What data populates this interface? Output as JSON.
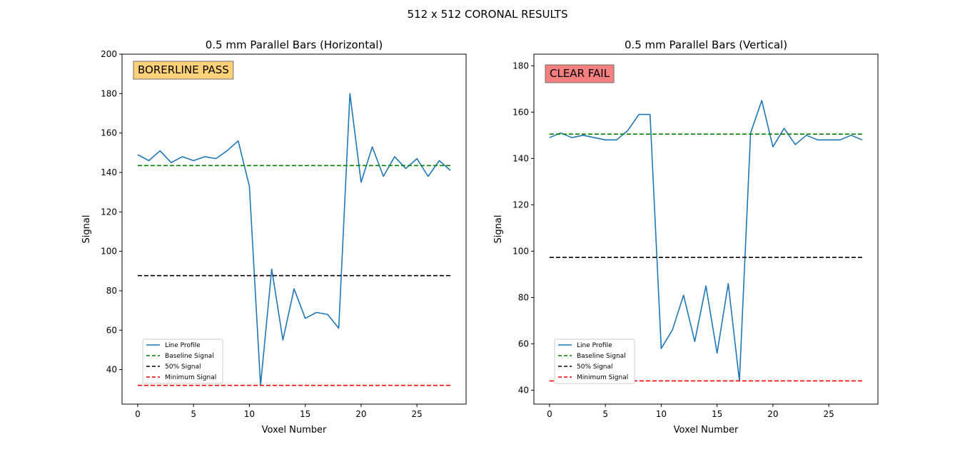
{
  "figure": {
    "title": "512 x 512 CORONAL RESULTS"
  },
  "chart_data": [
    {
      "type": "line",
      "title": "0.5 mm Parallel Bars (Horizontal)",
      "xlabel": "Voxel Number",
      "ylabel": "Signal",
      "xlim": [
        -1.4,
        29.4
      ],
      "ylim": [
        22.5,
        200
      ],
      "xticks": [
        0,
        5,
        10,
        15,
        20,
        25
      ],
      "yticks": [
        40,
        60,
        80,
        100,
        120,
        140,
        160,
        180,
        200
      ],
      "grid": false,
      "legend_position": "lower-left",
      "badge": {
        "text": "BORERLINE PASS",
        "color": "#ffd27a"
      },
      "series": [
        {
          "name": "Line Profile",
          "color": "#1f77b4",
          "style": "solid",
          "x": [
            0,
            1,
            2,
            3,
            4,
            5,
            6,
            7,
            8,
            9,
            10,
            11,
            12,
            13,
            14,
            15,
            16,
            17,
            18,
            19,
            20,
            21,
            22,
            23,
            24,
            25,
            26,
            27,
            28
          ],
          "y": [
            149,
            146,
            151,
            145,
            148,
            146,
            148,
            147,
            151,
            156,
            133,
            32,
            91,
            55,
            81,
            66,
            69,
            68,
            61,
            180,
            135,
            153,
            138,
            148,
            142,
            147,
            138,
            146,
            141
          ]
        },
        {
          "name": "Baseline Signal",
          "color": "#008000",
          "style": "dashed",
          "x": [
            0,
            28
          ],
          "y": [
            143.5,
            143.5
          ]
        },
        {
          "name": "50% Signal",
          "color": "#000000",
          "style": "dashed",
          "x": [
            0,
            28
          ],
          "y": [
            87.7,
            87.7
          ]
        },
        {
          "name": "Minimum Signal",
          "color": "#ff0000",
          "style": "dashed",
          "x": [
            0,
            28
          ],
          "y": [
            32,
            32
          ]
        }
      ]
    },
    {
      "type": "line",
      "title": "0.5 mm Parallel Bars (Vertical)",
      "xlabel": "Voxel Number",
      "ylabel": "Signal",
      "xlim": [
        -1.4,
        29.4
      ],
      "ylim": [
        34,
        185
      ],
      "xticks": [
        0,
        5,
        10,
        15,
        20,
        25
      ],
      "yticks": [
        40,
        60,
        80,
        100,
        120,
        140,
        160,
        180
      ],
      "grid": false,
      "legend_position": "lower-left",
      "badge": {
        "text": "CLEAR FAIL",
        "color": "#f47f7f"
      },
      "series": [
        {
          "name": "Line Profile",
          "color": "#1f77b4",
          "style": "solid",
          "x": [
            0,
            1,
            2,
            3,
            4,
            5,
            6,
            7,
            8,
            9,
            10,
            11,
            12,
            13,
            14,
            15,
            16,
            17,
            18,
            19,
            20,
            21,
            22,
            23,
            24,
            25,
            26,
            27,
            28
          ],
          "y": [
            149,
            151,
            149,
            150,
            149,
            148,
            148,
            152,
            159,
            159,
            58,
            66,
            81,
            61,
            85,
            56,
            86,
            44,
            151,
            165,
            145,
            153,
            146,
            150,
            148,
            148,
            148,
            150,
            148
          ]
        },
        {
          "name": "Baseline Signal",
          "color": "#008000",
          "style": "dashed",
          "x": [
            0,
            28
          ],
          "y": [
            150.5,
            150.5
          ]
        },
        {
          "name": "50% Signal",
          "color": "#000000",
          "style": "dashed",
          "x": [
            0,
            28
          ],
          "y": [
            97.3,
            97.3
          ]
        },
        {
          "name": "Minimum Signal",
          "color": "#ff0000",
          "style": "dashed",
          "x": [
            0,
            28
          ],
          "y": [
            44,
            44
          ]
        }
      ]
    }
  ]
}
